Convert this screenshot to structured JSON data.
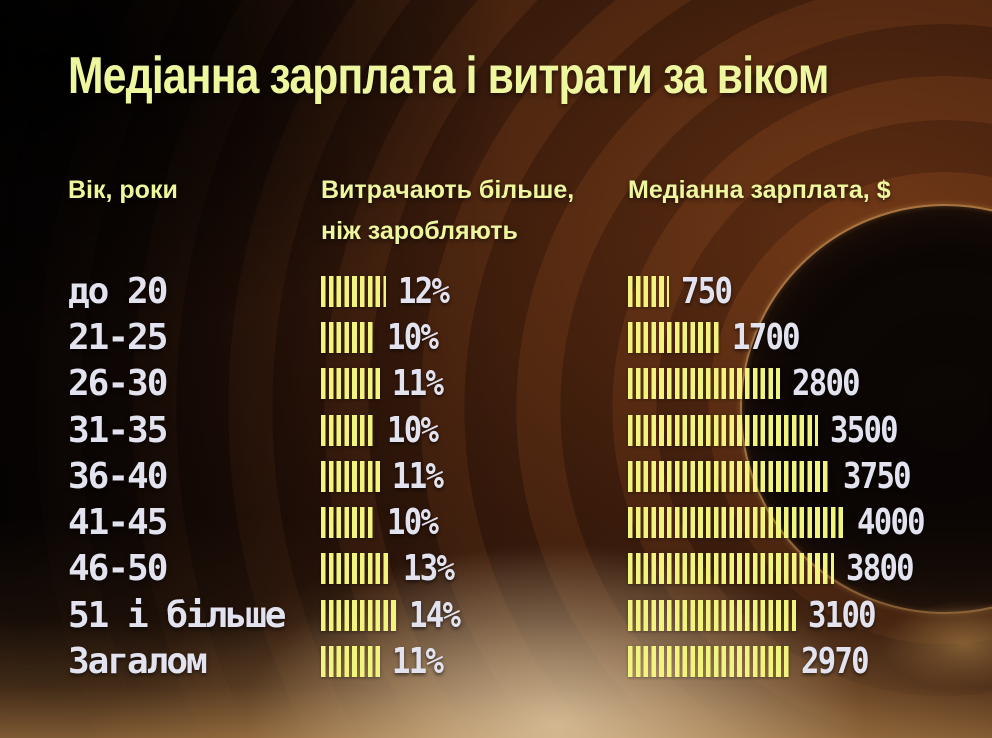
{
  "title": "Медіанна зарплата і витрати за віком",
  "columns": {
    "age": "Вік, роки",
    "overspend_line1": "Витрачають більше,",
    "overspend_line2": "ніж заробляють",
    "salary": "Медіанна зарплата, $"
  },
  "chart_data": {
    "type": "bar",
    "orientation": "horizontal",
    "bar_style": "striped",
    "title": "Медіанна зарплата і витрати за віком",
    "categories": [
      "до 20",
      "21-25",
      "26-30",
      "31-35",
      "36-40",
      "41-45",
      "46-50",
      "51 і більше",
      "Загалом"
    ],
    "series": [
      {
        "name": "Витрачають більше, ніж заробляють",
        "unit": "%",
        "values": [
          12,
          10,
          11,
          10,
          11,
          10,
          13,
          14,
          11
        ],
        "labels": [
          "12%",
          "10%",
          "11%",
          "10%",
          "11%",
          "10%",
          "13%",
          "14%",
          "11%"
        ]
      },
      {
        "name": "Медіанна зарплата, $",
        "unit": "$",
        "values": [
          750,
          1700,
          2800,
          3500,
          3750,
          4000,
          3800,
          3100,
          2970
        ],
        "labels": [
          "750",
          "1700",
          "2800",
          "3500",
          "3750",
          "4000",
          "3800",
          "3100",
          "2970"
        ]
      }
    ],
    "value_labels_position": "right-of-bar",
    "legend": "none",
    "grid": false
  },
  "colors": {
    "accent_yellow_green": "#eef79d",
    "bar_yellow": "#f2f57d",
    "row_text": "#e3e3f0",
    "background_base": "#070302"
  }
}
